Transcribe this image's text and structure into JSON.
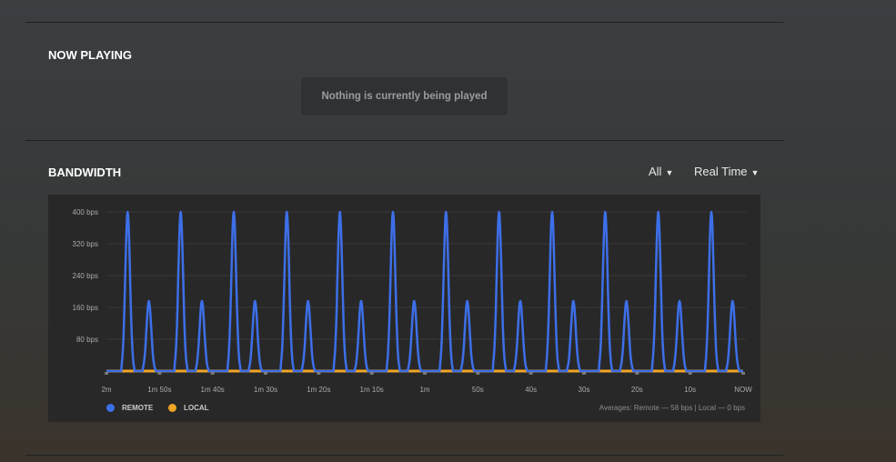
{
  "now_playing": {
    "title": "NOW PLAYING",
    "empty_message": "Nothing is currently being played"
  },
  "bandwidth": {
    "title": "BANDWIDTH",
    "filter": "All",
    "range": "Real Time",
    "averages": "Averages: Remote — 58 bps | Local — 0 bps"
  },
  "chart_data": {
    "type": "line",
    "x_range_seconds_ago": [
      120,
      0
    ],
    "x_ticks": [
      "2m",
      "1m 50s",
      "1m 40s",
      "1m 30s",
      "1m 20s",
      "1m 10s",
      "1m",
      "50s",
      "40s",
      "30s",
      "20s",
      "10s",
      "NOW"
    ],
    "y_ticks": [
      "400 bps",
      "320 bps",
      "240 bps",
      "160 bps",
      "80 bps"
    ],
    "ylim": [
      0,
      400
    ],
    "yunit": "bps",
    "grid": true,
    "series": [
      {
        "name": "REMOTE",
        "color": "#3d6fe8",
        "peaks_seconds_ago": [
          116,
          112,
          106,
          102,
          96,
          92,
          86,
          82,
          76,
          72,
          66,
          62,
          56,
          52,
          46,
          42,
          36,
          32,
          26,
          22,
          16,
          12,
          6,
          2
        ],
        "peak_values": [
          400,
          176,
          400,
          176,
          400,
          176,
          400,
          176,
          400,
          176,
          400,
          176,
          400,
          176,
          400,
          176,
          400,
          176,
          400,
          176,
          400,
          176,
          400,
          176
        ]
      },
      {
        "name": "LOCAL",
        "color": "#f0a526",
        "constant_value": 0
      }
    ]
  }
}
